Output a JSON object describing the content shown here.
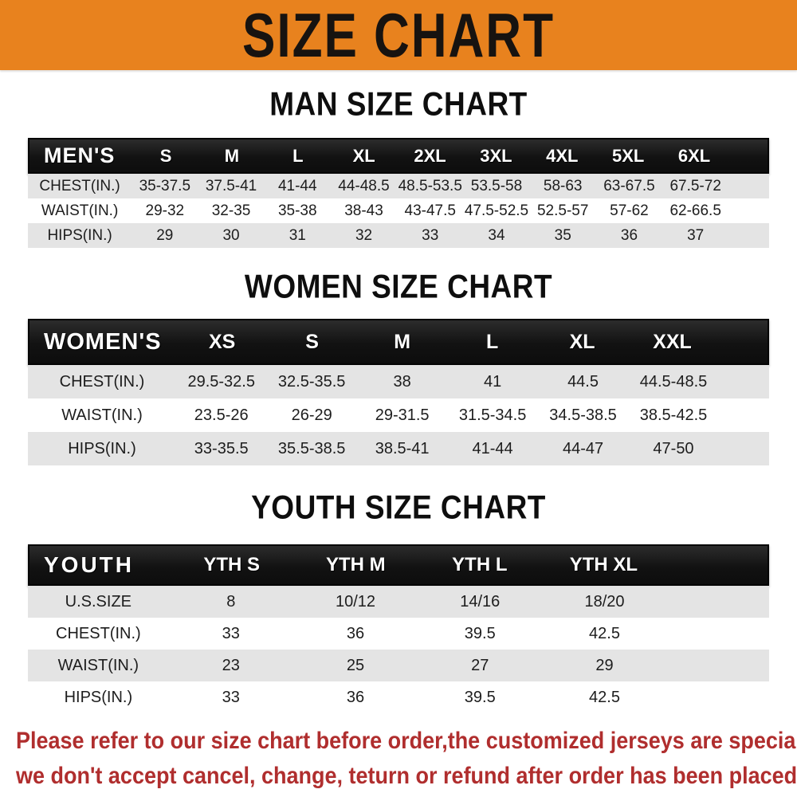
{
  "banner": {
    "title": "SIZE CHART",
    "bg_color": "#e8821e"
  },
  "sections": [
    {
      "key": "men",
      "heading": "MAN SIZE CHART",
      "table": {
        "corner_label": "MEN'S",
        "columns": [
          "S",
          "M",
          "L",
          "XL",
          "2XL",
          "3XL",
          "4XL",
          "5XL",
          "6XL"
        ],
        "rows": [
          {
            "label": "CHEST(IN.)",
            "values": [
              "35-37.5",
              "37.5-41",
              "41-44",
              "44-48.5",
              "48.5-53.5",
              "53.5-58",
              "58-63",
              "63-67.5",
              "67.5-72"
            ]
          },
          {
            "label": "WAIST(IN.)",
            "values": [
              "29-32",
              "32-35",
              "35-38",
              "38-43",
              "43-47.5",
              "47.5-52.5",
              "52.5-57",
              "57-62",
              "62-66.5"
            ]
          },
          {
            "label": "HIPS(IN.)",
            "values": [
              "29",
              "30",
              "31",
              "32",
              "33",
              "34",
              "35",
              "36",
              "37"
            ]
          }
        ]
      }
    },
    {
      "key": "women",
      "heading": "WOMEN SIZE CHART",
      "table": {
        "corner_label": "WOMEN'S",
        "columns": [
          "XS",
          "S",
          "M",
          "L",
          "XL",
          "XXL"
        ],
        "rows": [
          {
            "label": "CHEST(IN.)",
            "values": [
              "29.5-32.5",
              "32.5-35.5",
              "38",
              "41",
              "44.5",
              "44.5-48.5"
            ]
          },
          {
            "label": "WAIST(IN.)",
            "values": [
              "23.5-26",
              "26-29",
              "29-31.5",
              "31.5-34.5",
              "34.5-38.5",
              "38.5-42.5"
            ]
          },
          {
            "label": "HIPS(IN.)",
            "values": [
              "33-35.5",
              "35.5-38.5",
              "38.5-41",
              "41-44",
              "44-47",
              "47-50"
            ]
          }
        ]
      }
    },
    {
      "key": "youth",
      "heading": "YOUTH SIZE CHART",
      "table": {
        "corner_label": "YOUTH",
        "columns": [
          "YTH S",
          "YTH M",
          "YTH L",
          "YTH XL"
        ],
        "rows": [
          {
            "label": "U.S.SIZE",
            "values": [
              "8",
              "10/12",
              "14/16",
              "18/20"
            ]
          },
          {
            "label": "CHEST(IN.)",
            "values": [
              "33",
              "36",
              "39.5",
              "42.5"
            ]
          },
          {
            "label": "WAIST(IN.)",
            "values": [
              "23",
              "25",
              "27",
              "29"
            ]
          },
          {
            "label": "HIPS(IN.)",
            "values": [
              "33",
              "36",
              "39.5",
              "42.5"
            ]
          }
        ]
      }
    }
  ],
  "footer": {
    "line1": "Please refer to our size chart before order,the customized jerseys are special products,",
    "line2": "we don't accept cancel, change, teturn or refund after order has been placed!",
    "text_color": "#b02e2e"
  }
}
